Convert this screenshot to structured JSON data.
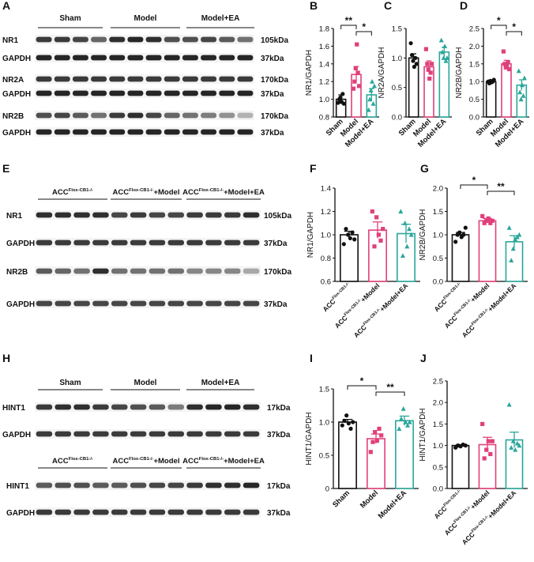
{
  "panel_letters": [
    "A",
    "B",
    "C",
    "D",
    "E",
    "F",
    "G",
    "H",
    "I",
    "J"
  ],
  "colors": {
    "black": "#111111",
    "pink": "#e0407a",
    "teal": "#2aa69a"
  },
  "blot_A": {
    "groups": [
      "Sham",
      "Model",
      "Model+EA"
    ],
    "rows": [
      {
        "label": "NR1",
        "kda": "105kDa"
      },
      {
        "label": "GAPDH",
        "kda": "37kDa"
      },
      {
        "label": "NR2A",
        "kda": "170kDa"
      },
      {
        "label": "GAPDH",
        "kda": "37kDa"
      },
      {
        "label": "NR2B",
        "kda": "170kDa"
      },
      {
        "label": "GAPDH",
        "kda": "37kDa"
      }
    ]
  },
  "blot_E": {
    "acc_base": "ACC",
    "acc_sup": "Flox-CB1-/-",
    "group_suffixes": [
      "",
      "+Model",
      "+Model+EA"
    ],
    "rows": [
      {
        "label": "NR1",
        "kda": "105kDa"
      },
      {
        "label": "GAPDH",
        "kda": "37kDa"
      },
      {
        "label": "NR2B",
        "kda": "170kDa"
      },
      {
        "label": "GAPDH",
        "kda": "37kDa"
      }
    ]
  },
  "blot_H": {
    "groups": [
      "Sham",
      "Model",
      "Model+EA"
    ],
    "rows_top": [
      {
        "label": "HINT1",
        "kda": "17kDa"
      },
      {
        "label": "GAPDH",
        "kda": "37kDa"
      }
    ],
    "group_suffixes": [
      "",
      "+Model",
      "+Model+EA"
    ],
    "rows_bottom": [
      {
        "label": "HINT1",
        "kda": "17kDa"
      },
      {
        "label": "GAPDH",
        "kda": "37kDa"
      }
    ]
  },
  "chart_data": [
    {
      "panel": "B",
      "type": "bar",
      "categories": [
        "Sham",
        "Model",
        "Model+EA"
      ],
      "values": [
        1.0,
        1.28,
        1.05
      ],
      "errors": [
        0.05,
        0.09,
        0.07
      ],
      "ylabel": "NR1/GAPDH",
      "ylim": [
        0.8,
        1.8
      ],
      "yticks": [
        "0.8",
        "1.0",
        "1.2",
        "1.4",
        "1.6",
        "1.8"
      ],
      "significance": [
        {
          "from": 0,
          "to": 1,
          "label": "**"
        },
        {
          "from": 1,
          "to": 2,
          "label": "*"
        }
      ],
      "points": [
        [
          0.96,
          1.0,
          1.02,
          0.97,
          1.06,
          0.95
        ],
        [
          1.12,
          1.2,
          1.35,
          1.62,
          1.3,
          1.15
        ],
        [
          0.88,
          1.0,
          1.1,
          1.2,
          0.95,
          1.15
        ]
      ]
    },
    {
      "panel": "C",
      "type": "bar",
      "categories": [
        "Sham",
        "Model",
        "Model+EA"
      ],
      "values": [
        1.0,
        0.85,
        1.1
      ],
      "errors": [
        0.07,
        0.1,
        0.08
      ],
      "ylabel": "NR2A/GAPDH",
      "ylim": [
        0.0,
        1.5
      ],
      "yticks": [
        "0.0",
        "0.5",
        "1.0",
        "1.5"
      ],
      "significance": [],
      "points": [
        [
          1.25,
          1.05,
          0.95,
          0.85,
          1.0,
          0.9
        ],
        [
          1.15,
          0.9,
          0.8,
          0.65,
          0.75,
          0.9
        ],
        [
          1.3,
          1.1,
          1.0,
          1.2,
          0.95,
          1.0
        ]
      ]
    },
    {
      "panel": "D",
      "type": "bar",
      "categories": [
        "Sham",
        "Model",
        "Model+EA"
      ],
      "values": [
        1.0,
        1.5,
        0.9
      ],
      "errors": [
        0.04,
        0.1,
        0.15
      ],
      "ylabel": "NR2B/GAPDH",
      "ylim": [
        0.0,
        2.5
      ],
      "yticks": [
        "0.0",
        "0.5",
        "1.0",
        "1.5",
        "2.0",
        "2.5"
      ],
      "significance": [
        {
          "from": 0,
          "to": 1,
          "label": "*"
        },
        {
          "from": 1,
          "to": 2,
          "label": "*"
        }
      ],
      "points": [
        [
          1.0,
          0.95,
          1.02,
          0.98,
          1.0,
          1.05
        ],
        [
          1.85,
          1.5,
          1.4,
          1.45,
          1.55,
          1.35
        ],
        [
          1.3,
          0.7,
          0.5,
          0.9,
          0.6,
          1.1
        ]
      ]
    },
    {
      "panel": "F",
      "type": "bar",
      "categories": [
        "ACC{Flox-CB1-/-}",
        "ACC{Flox-CB1-/-}+Model",
        "ACC{Flox-CB1-/-}+Model+EA"
      ],
      "values": [
        1.0,
        1.04,
        1.01
      ],
      "errors": [
        0.03,
        0.07,
        0.08
      ],
      "ylabel": "NR1/GAPDH",
      "ylim": [
        0.6,
        1.4
      ],
      "yticks": [
        "0.6",
        "0.8",
        "1.0",
        "1.2",
        "1.4"
      ],
      "significance": [],
      "points": [
        [
          0.92,
          1.05,
          1.0,
          0.97,
          1.02,
          0.96
        ],
        [
          1.2,
          0.9,
          1.15,
          1.0,
          0.95,
          1.05
        ],
        [
          1.2,
          0.82,
          1.1,
          0.9,
          1.05,
          1.0
        ]
      ]
    },
    {
      "panel": "G",
      "type": "bar",
      "categories": [
        "ACC{Flox-CB1-/-}",
        "ACC{Flox-CB1-/-}+Model",
        "ACC{Flox-CB1-/-}+Model+EA"
      ],
      "values": [
        1.0,
        1.3,
        0.85
      ],
      "errors": [
        0.05,
        0.05,
        0.13
      ],
      "ylabel": "NR2B/GAPDH",
      "ylim": [
        0.0,
        2.0
      ],
      "yticks": [
        "0.0",
        "0.5",
        "1.0",
        "1.5",
        "2.0"
      ],
      "significance": [
        {
          "from": 0,
          "to": 1,
          "label": "*"
        },
        {
          "from": 1,
          "to": 2,
          "label": "**"
        }
      ],
      "points": [
        [
          0.85,
          1.0,
          1.05,
          0.95,
          1.0,
          1.15
        ],
        [
          1.4,
          1.25,
          1.3,
          1.35,
          1.25,
          1.3
        ],
        [
          1.15,
          0.45,
          0.7,
          0.9,
          0.95,
          1.0
        ]
      ]
    },
    {
      "panel": "I",
      "type": "bar",
      "categories": [
        "Sham",
        "Model",
        "Model+EA"
      ],
      "values": [
        1.0,
        0.75,
        1.02
      ],
      "errors": [
        0.04,
        0.07,
        0.07
      ],
      "ylabel": "HINT1/GAPDH",
      "ylim": [
        0.0,
        1.5
      ],
      "yticks": [
        "0",
        "0.5",
        "1.0",
        "1.5"
      ],
      "significance": [
        {
          "from": 0,
          "to": 1,
          "label": "*"
        },
        {
          "from": 1,
          "to": 2,
          "label": "**"
        }
      ],
      "points": [
        [
          0.95,
          1.02,
          1.1,
          0.98,
          0.9,
          1.0
        ],
        [
          0.55,
          0.7,
          0.85,
          0.72,
          0.9,
          0.8
        ],
        [
          0.9,
          1.05,
          1.2,
          1.0,
          0.95,
          1.0
        ]
      ]
    },
    {
      "panel": "J",
      "type": "bar",
      "categories": [
        "ACC{Flox-CB1-/-}",
        "ACC{Flox-CB1-/-}+Model",
        "ACC{Flox-CB1-/-}+Model+EA"
      ],
      "values": [
        1.0,
        1.02,
        1.13
      ],
      "errors": [
        0.02,
        0.17,
        0.18
      ],
      "ylabel": "HINT1/GAPDH",
      "ylim": [
        0.0,
        2.5
      ],
      "yticks": [
        "0.0",
        "0.5",
        "1.0",
        "1.5",
        "2.0",
        "2.5"
      ],
      "significance": [],
      "points": [
        [
          0.95,
          1.0,
          0.98,
          1.02,
          1.0
        ],
        [
          1.5,
          0.7,
          0.9,
          1.1,
          0.8,
          1.1
        ],
        [
          1.95,
          0.95,
          1.1,
          0.9,
          1.05,
          1.0
        ]
      ]
    }
  ]
}
